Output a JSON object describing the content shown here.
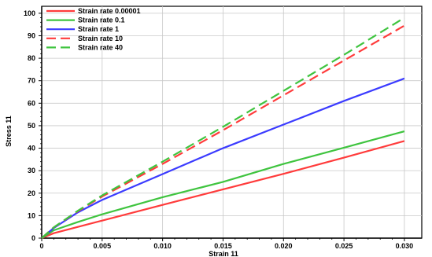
{
  "chart_data": {
    "type": "line",
    "title": "",
    "xlabel": "Strain 11",
    "ylabel": "Stress 11",
    "xlim": [
      0,
      0.0302
    ],
    "ylim": [
      0,
      101
    ],
    "x_ticks": [
      0,
      0.005,
      0.01,
      0.015,
      0.02,
      0.025,
      0.03
    ],
    "x_tick_labels": [
      "0",
      "0.005",
      "0.010",
      "0.015",
      "0.020",
      "0.025",
      "0.030"
    ],
    "y_ticks": [
      0,
      10,
      20,
      30,
      40,
      50,
      60,
      70,
      80,
      90,
      100
    ],
    "y_tick_labels": [
      "0",
      "10",
      "20",
      "30",
      "40",
      "50",
      "60",
      "70",
      "80",
      "90",
      "100"
    ],
    "grid": true,
    "legend_position": "top-left",
    "series": [
      {
        "name": "Strain rate 0.00001",
        "color": "#ff3b3b",
        "dash": "solid",
        "points": [
          [
            0,
            0
          ],
          [
            0.001,
            2.2
          ],
          [
            0.005,
            7.8
          ],
          [
            0.01,
            14.8
          ],
          [
            0.015,
            21.7
          ],
          [
            0.02,
            28.6
          ],
          [
            0.025,
            35.8
          ],
          [
            0.03,
            43.2
          ]
        ]
      },
      {
        "name": "Strain rate 0.1",
        "color": "#3fc43f",
        "dash": "solid",
        "points": [
          [
            0,
            0
          ],
          [
            0.001,
            3.5
          ],
          [
            0.003,
            7.2
          ],
          [
            0.005,
            10.6
          ],
          [
            0.01,
            18.2
          ],
          [
            0.015,
            25.0
          ],
          [
            0.02,
            33.0
          ],
          [
            0.025,
            40.2
          ],
          [
            0.03,
            47.5
          ]
        ]
      },
      {
        "name": "Strain rate 1",
        "color": "#3b3bff",
        "dash": "solid",
        "points": [
          [
            0,
            0
          ],
          [
            0.001,
            4.5
          ],
          [
            0.003,
            11.5
          ],
          [
            0.005,
            17.0
          ],
          [
            0.01,
            28.5
          ],
          [
            0.015,
            40.0
          ],
          [
            0.02,
            50.5
          ],
          [
            0.025,
            61.0
          ],
          [
            0.03,
            71.0
          ]
        ]
      },
      {
        "name": "Strain rate 10",
        "color": "#ff3b3b",
        "dash": "dashed",
        "points": [
          [
            0,
            0
          ],
          [
            0.001,
            4.8
          ],
          [
            0.003,
            12.0
          ],
          [
            0.005,
            18.5
          ],
          [
            0.01,
            33.0
          ],
          [
            0.015,
            48.0
          ],
          [
            0.02,
            63.5
          ],
          [
            0.025,
            79.0
          ],
          [
            0.03,
            94.5
          ]
        ]
      },
      {
        "name": "Strain rate 40",
        "color": "#3fc43f",
        "dash": "dashed",
        "points": [
          [
            0,
            0
          ],
          [
            0.001,
            4.8
          ],
          [
            0.003,
            12.2
          ],
          [
            0.005,
            19.0
          ],
          [
            0.01,
            34.0
          ],
          [
            0.015,
            49.5
          ],
          [
            0.02,
            65.5
          ],
          [
            0.025,
            81.5
          ],
          [
            0.03,
            98.0
          ]
        ]
      }
    ]
  }
}
